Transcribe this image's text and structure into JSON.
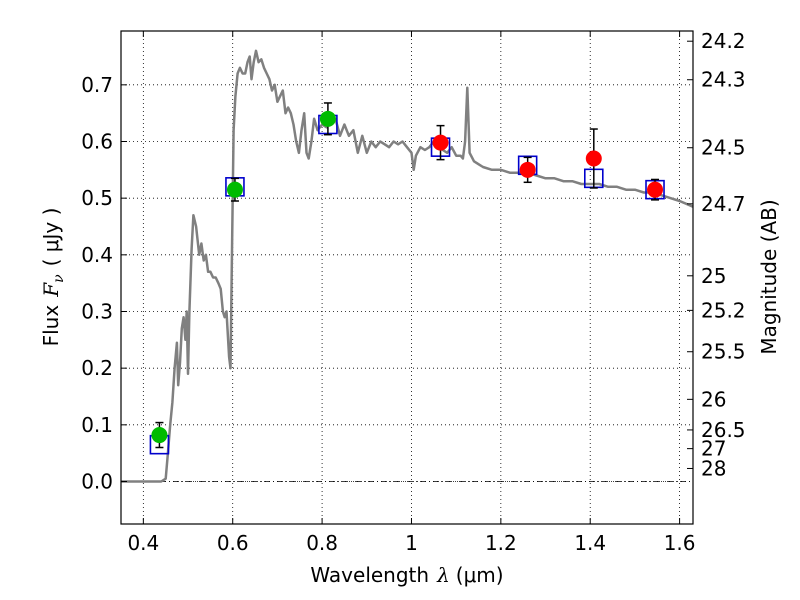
{
  "chart_data": {
    "type": "scatter",
    "xlabel": "Wavelength",
    "xlabel_symbol": "λ",
    "xlabel_unit": "(μm)",
    "ylabel": "Flux",
    "ylabel_symbol": "F",
    "ylabel_subscript": "ν",
    "ylabel_unit": "( μJy )",
    "y2label": "Magnitude (AB)",
    "xlim": [
      0.35,
      1.63
    ],
    "ylim": [
      -0.075,
      0.795
    ],
    "grid": true,
    "xticks": [
      0.4,
      0.6,
      0.8,
      1.0,
      1.2,
      1.4,
      1.6
    ],
    "xtick_labels": [
      "0.4",
      "0.6",
      "0.8",
      "1",
      "1.2",
      "1.4",
      "1.6"
    ],
    "yticks": [
      0.0,
      0.1,
      0.2,
      0.3,
      0.4,
      0.5,
      0.6,
      0.7
    ],
    "ytick_labels": [
      "0.0",
      "0.1",
      "0.2",
      "0.3",
      "0.4",
      "0.5",
      "0.6",
      "0.7"
    ],
    "magnitude_ticks": [
      {
        "label": "24.2",
        "flux": 0.777
      },
      {
        "label": "24.3",
        "flux": 0.709
      },
      {
        "label": "24.5",
        "flux": 0.589
      },
      {
        "label": "24.7",
        "flux": 0.49
      },
      {
        "label": "25",
        "flux": 0.363
      },
      {
        "label": "25.2",
        "flux": 0.302
      },
      {
        "label": "25.5",
        "flux": 0.229
      },
      {
        "label": "26",
        "flux": 0.145
      },
      {
        "label": "26.5",
        "flux": 0.091
      },
      {
        "label": "27",
        "flux": 0.058
      },
      {
        "label": "28",
        "flux": 0.023
      }
    ],
    "colors": {
      "model": "#808080",
      "green_points": "#00bb00",
      "red_points": "#ff0000",
      "model_photometry": "#0000cc",
      "zero_line": "#000000",
      "grid": "#000000"
    },
    "series": [
      {
        "kind": "line",
        "points": [
          [
            0.35,
            0.0
          ],
          [
            0.44,
            0.0
          ],
          [
            0.45,
            0.005
          ],
          [
            0.455,
            0.05
          ],
          [
            0.46,
            0.1
          ],
          [
            0.465,
            0.14
          ],
          [
            0.47,
            0.2
          ],
          [
            0.475,
            0.245
          ],
          [
            0.478,
            0.17
          ],
          [
            0.482,
            0.21
          ],
          [
            0.486,
            0.27
          ],
          [
            0.49,
            0.29
          ],
          [
            0.494,
            0.25
          ],
          [
            0.497,
            0.3
          ],
          [
            0.5,
            0.19
          ],
          [
            0.503,
            0.3
          ],
          [
            0.508,
            0.41
          ],
          [
            0.512,
            0.47
          ],
          [
            0.518,
            0.45
          ],
          [
            0.525,
            0.4
          ],
          [
            0.53,
            0.42
          ],
          [
            0.535,
            0.39
          ],
          [
            0.54,
            0.4
          ],
          [
            0.545,
            0.37
          ],
          [
            0.55,
            0.37
          ],
          [
            0.556,
            0.36
          ],
          [
            0.562,
            0.36
          ],
          [
            0.568,
            0.35
          ],
          [
            0.573,
            0.34
          ],
          [
            0.578,
            0.3
          ],
          [
            0.582,
            0.29
          ],
          [
            0.586,
            0.3
          ],
          [
            0.592,
            0.22
          ],
          [
            0.595,
            0.2
          ],
          [
            0.598,
            0.38
          ],
          [
            0.602,
            0.62
          ],
          [
            0.606,
            0.68
          ],
          [
            0.611,
            0.72
          ],
          [
            0.616,
            0.73
          ],
          [
            0.622,
            0.72
          ],
          [
            0.628,
            0.72
          ],
          [
            0.633,
            0.74
          ],
          [
            0.638,
            0.75
          ],
          [
            0.642,
            0.71
          ],
          [
            0.647,
            0.74
          ],
          [
            0.652,
            0.76
          ],
          [
            0.658,
            0.74
          ],
          [
            0.664,
            0.745
          ],
          [
            0.67,
            0.73
          ],
          [
            0.676,
            0.72
          ],
          [
            0.682,
            0.71
          ],
          [
            0.688,
            0.69
          ],
          [
            0.694,
            0.7
          ],
          [
            0.7,
            0.67
          ],
          [
            0.706,
            0.68
          ],
          [
            0.712,
            0.69
          ],
          [
            0.718,
            0.65
          ],
          [
            0.724,
            0.66
          ],
          [
            0.73,
            0.65
          ],
          [
            0.736,
            0.63
          ],
          [
            0.742,
            0.6
          ],
          [
            0.748,
            0.58
          ],
          [
            0.754,
            0.62
          ],
          [
            0.76,
            0.65
          ],
          [
            0.765,
            0.58
          ],
          [
            0.77,
            0.57
          ],
          [
            0.776,
            0.6
          ],
          [
            0.782,
            0.64
          ],
          [
            0.79,
            0.62
          ],
          [
            0.8,
            0.63
          ],
          [
            0.81,
            0.625
          ],
          [
            0.82,
            0.635
          ],
          [
            0.83,
            0.64
          ],
          [
            0.84,
            0.61
          ],
          [
            0.85,
            0.63
          ],
          [
            0.86,
            0.61
          ],
          [
            0.87,
            0.62
          ],
          [
            0.88,
            0.58
          ],
          [
            0.89,
            0.61
          ],
          [
            0.9,
            0.58
          ],
          [
            0.91,
            0.6
          ],
          [
            0.92,
            0.59
          ],
          [
            0.93,
            0.6
          ],
          [
            0.94,
            0.595
          ],
          [
            0.95,
            0.59
          ],
          [
            0.96,
            0.6
          ],
          [
            0.97,
            0.595
          ],
          [
            0.98,
            0.6
          ],
          [
            0.99,
            0.59
          ],
          [
            1.0,
            0.58
          ],
          [
            1.005,
            0.55
          ],
          [
            1.01,
            0.575
          ],
          [
            1.02,
            0.59
          ],
          [
            1.03,
            0.585
          ],
          [
            1.04,
            0.59
          ],
          [
            1.05,
            0.6
          ],
          [
            1.06,
            0.59
          ],
          [
            1.07,
            0.585
          ],
          [
            1.08,
            0.58
          ],
          [
            1.09,
            0.59
          ],
          [
            1.1,
            0.575
          ],
          [
            1.11,
            0.575
          ],
          [
            1.115,
            0.57
          ],
          [
            1.12,
            0.6
          ],
          [
            1.125,
            0.695
          ],
          [
            1.13,
            0.58
          ],
          [
            1.14,
            0.565
          ],
          [
            1.15,
            0.56
          ],
          [
            1.16,
            0.555
          ],
          [
            1.18,
            0.55
          ],
          [
            1.2,
            0.55
          ],
          [
            1.22,
            0.545
          ],
          [
            1.24,
            0.545
          ],
          [
            1.26,
            0.545
          ],
          [
            1.28,
            0.54
          ],
          [
            1.3,
            0.535
          ],
          [
            1.32,
            0.535
          ],
          [
            1.34,
            0.53
          ],
          [
            1.36,
            0.53
          ],
          [
            1.38,
            0.525
          ],
          [
            1.4,
            0.525
          ],
          [
            1.42,
            0.525
          ],
          [
            1.44,
            0.52
          ],
          [
            1.46,
            0.52
          ],
          [
            1.48,
            0.515
          ],
          [
            1.5,
            0.515
          ],
          [
            1.52,
            0.51
          ],
          [
            1.54,
            0.51
          ],
          [
            1.56,
            0.505
          ],
          [
            1.58,
            0.5
          ],
          [
            1.6,
            0.495
          ],
          [
            1.63,
            0.485
          ]
        ]
      },
      {
        "kind": "squares",
        "points": [
          [
            0.436,
            0.065
          ],
          [
            0.605,
            0.52
          ],
          [
            0.813,
            0.63
          ],
          [
            1.065,
            0.59
          ],
          [
            1.26,
            0.558
          ],
          [
            1.408,
            0.535
          ],
          [
            1.545,
            0.515
          ]
        ]
      },
      {
        "kind": "points",
        "points": [
          {
            "x": 0.436,
            "y": 0.082,
            "err": 0.022
          },
          {
            "x": 0.605,
            "y": 0.515,
            "err": 0.02
          },
          {
            "x": 0.813,
            "y": 0.64,
            "err": 0.028
          }
        ]
      },
      {
        "kind": "points",
        "points": [
          {
            "x": 1.065,
            "y": 0.598,
            "err": 0.03
          },
          {
            "x": 1.26,
            "y": 0.55,
            "err": 0.022
          },
          {
            "x": 1.408,
            "y": 0.57,
            "err": 0.052
          },
          {
            "x": 1.545,
            "y": 0.515,
            "err": 0.018
          }
        ]
      }
    ]
  }
}
